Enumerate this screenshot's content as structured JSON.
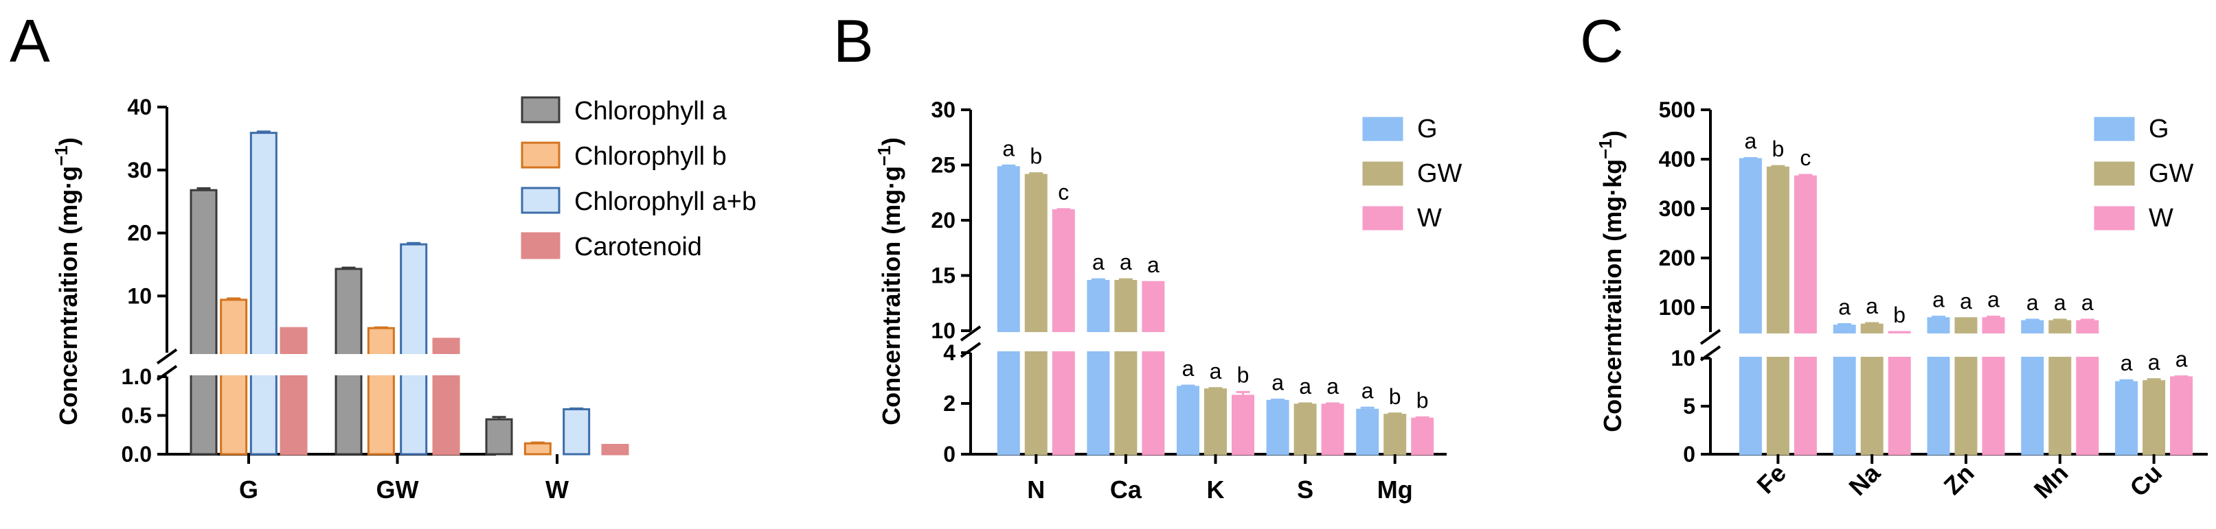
{
  "panels": [
    {
      "letter": "A",
      "legend_style": "chlorophyll",
      "chart_data": {
        "type": "bar",
        "categories": [
          "G",
          "GW",
          "W"
        ],
        "series": [
          {
            "name": "Chlorophyll a",
            "values": [
              26.8,
              14.3,
              0.45
            ],
            "errors": [
              0.3,
              0.2,
              0.03
            ]
          },
          {
            "name": "Chlorophyll b",
            "values": [
              9.4,
              4.9,
              0.14
            ],
            "errors": [
              0.2,
              0.1,
              0.01
            ]
          },
          {
            "name": "Chlorophyll a+b",
            "values": [
              35.9,
              18.2,
              0.58
            ],
            "errors": [
              0.2,
              0.2,
              0.01
            ]
          },
          {
            "name": "Carotenoid",
            "values": [
              4.9,
              3.2,
              0.12
            ],
            "errors": [
              0,
              0,
              0
            ]
          }
        ],
        "ylabel": "Concerntraition (mg·g",
        "ylabel_sup": "−1",
        "ylabel_close": ")",
        "axis_break": {
          "lower": [
            0,
            1.0
          ],
          "upper": [
            1.0,
            40
          ]
        },
        "yticks_lower": [
          "0.0",
          "0.5",
          "1.0"
        ],
        "yticks_upper": [
          "10",
          "20",
          "30",
          "40"
        ],
        "significance": [],
        "grid": false,
        "legend_position": "top-right"
      }
    },
    {
      "letter": "B",
      "legend_style": "group",
      "chart_data": {
        "type": "bar",
        "categories": [
          "N",
          "Ca",
          "K",
          "S",
          "Mg"
        ],
        "series": [
          {
            "name": "G",
            "values": [
              24.8,
              14.5,
              2.65,
              2.1,
              1.75
            ],
            "errors": [
              0.15,
              0.15,
              0.05,
              0.05,
              0.08
            ]
          },
          {
            "name": "GW",
            "values": [
              24.1,
              14.5,
              2.55,
              1.95,
              1.55
            ],
            "errors": [
              0.15,
              0.15,
              0.05,
              0.05,
              0.05
            ]
          },
          {
            "name": "W",
            "values": [
              20.9,
              14.4,
              2.3,
              1.95,
              1.4
            ],
            "errors": [
              0.1,
              0,
              0.15,
              0.05,
              0.05
            ]
          }
        ],
        "ylabel": "Concerntraition (mg·g",
        "ylabel_sup": "−1",
        "ylabel_close": ")",
        "axis_break": {
          "lower": [
            0,
            4
          ],
          "upper": [
            10,
            30
          ]
        },
        "yticks_lower": [
          "0",
          "2",
          "4"
        ],
        "yticks_upper": [
          "10",
          "15",
          "20",
          "25",
          "30"
        ],
        "significance": [
          [
            "a",
            "b",
            "c"
          ],
          [
            "a",
            "a",
            "a"
          ],
          [
            "a",
            "a",
            "b"
          ],
          [
            "a",
            "a",
            "a"
          ],
          [
            "a",
            "b",
            "b"
          ]
        ],
        "grid": false,
        "legend_position": "top-right"
      }
    },
    {
      "letter": "C",
      "legend_style": "group",
      "chart_data": {
        "type": "bar",
        "categories": [
          "Fe",
          "Na",
          "Zn",
          "Mn",
          "Cu"
        ],
        "series": [
          {
            "name": "G",
            "values": [
              400,
              63,
              78,
              72,
              7.5
            ],
            "errors": [
              2,
              3,
              3,
              3,
              0.2
            ]
          },
          {
            "name": "GW",
            "values": [
              383,
              65,
              78,
              72,
              7.6
            ],
            "errors": [
              3,
              3,
              0,
              3,
              0.2
            ]
          },
          {
            "name": "W",
            "values": [
              365,
              42,
              78,
              72,
              8.0
            ],
            "errors": [
              3,
              3,
              3,
              3,
              0.1
            ]
          }
        ],
        "ylabel": "Concerntraition (mg·kg",
        "ylabel_sup": "−1",
        "ylabel_close": ")",
        "axis_break": {
          "lower": [
            0,
            10
          ],
          "upper": [
            50,
            500
          ]
        },
        "yticks_lower": [
          "0",
          "5",
          "10"
        ],
        "yticks_upper": [
          "100",
          "200",
          "300",
          "400",
          "500"
        ],
        "significance": [
          [
            "a",
            "b",
            "c"
          ],
          [
            "a",
            "a",
            "b"
          ],
          [
            "a",
            "a",
            "a"
          ],
          [
            "a",
            "a",
            "a"
          ],
          [
            "a",
            "a",
            "a"
          ]
        ],
        "grid": false,
        "legend_position": "top-right",
        "rotated_xticks": true
      }
    }
  ],
  "colors": {
    "chlorophyll_a": {
      "fill": "#9a9a9a",
      "stroke": "#3a3a3a"
    },
    "chlorophyll_b": {
      "fill": "#f8c18e",
      "stroke": "#d4741f"
    },
    "chlorophyll_ab": {
      "fill": "#cfe3f9",
      "stroke": "#3e6da8"
    },
    "carotenoid": {
      "fill": "#e0898a",
      "stroke": "#e0898a"
    },
    "G": "#8fbff5",
    "GW": "#bdb27f",
    "W": "#f79cc7"
  }
}
